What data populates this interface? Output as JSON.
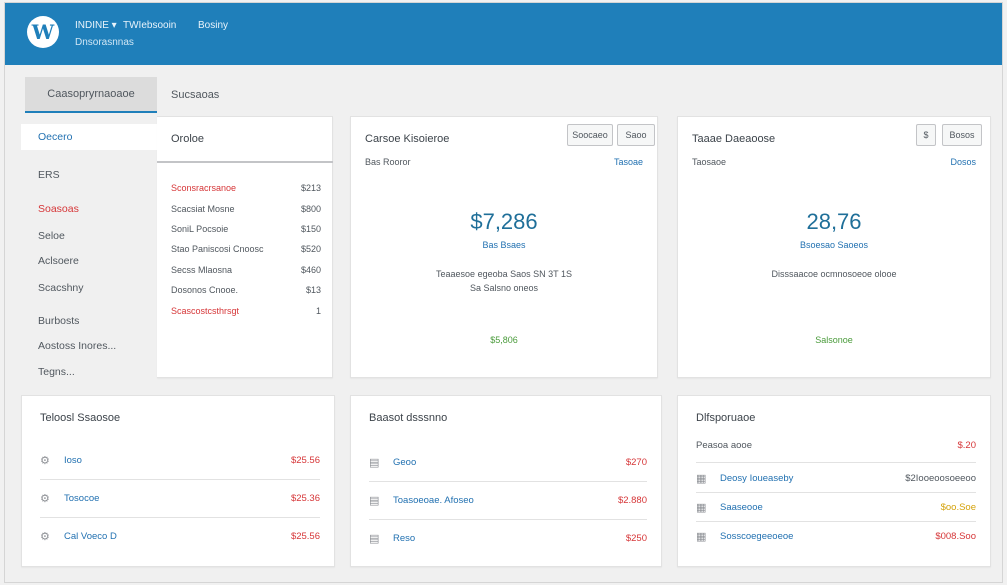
{
  "header": {
    "site_name": "INDINE ▾",
    "mid_link": "TWIebsooin",
    "right_link": "Bosiny",
    "subtitle": "Dnsorasnnas"
  },
  "tabs": [
    {
      "label": "Caasopryrnaoaoe",
      "active": true
    },
    {
      "label": "Sucsaoas",
      "active": false
    }
  ],
  "nav": [
    {
      "label": "Oecero",
      "active": true,
      "red": false
    },
    {
      "label": "ERS",
      "active": false,
      "red": false
    },
    {
      "label": "Soasoas",
      "active": false,
      "red": true
    },
    {
      "label": "Seloe",
      "active": false,
      "red": false
    },
    {
      "label": "Aclsoere",
      "active": false,
      "red": false
    },
    {
      "label": "Scacshny",
      "active": false,
      "red": false
    },
    {
      "label": "Burbosts",
      "active": false,
      "red": false
    },
    {
      "label": "Aostoss Inores...",
      "active": false,
      "red": false
    },
    {
      "label": "Tegns...",
      "active": false,
      "red": false
    }
  ],
  "orders": {
    "title": "Oroloe",
    "rows": [
      {
        "label": "Sconsracrsanoe",
        "value": "$213",
        "red": true
      },
      {
        "label": "Scacsiat Mosne",
        "value": "$800",
        "red": false
      },
      {
        "label": "SoniL Pocsoie",
        "value": "$150",
        "red": false
      },
      {
        "label": "Stao Paniscosi Cnoosc",
        "value": "$520",
        "red": false
      },
      {
        "label": "Secss Mlaosna",
        "value": "$460",
        "red": false
      },
      {
        "label": "Dosonos Cnooe.",
        "value": "$13",
        "red": false
      },
      {
        "label": "Scascostcsthrsgt",
        "value": "1",
        "red": true
      }
    ]
  },
  "summary1": {
    "title": "Carsoe Kisoieroe",
    "btn1": "Soocaeo",
    "btn2": "Saoo",
    "sub_left": "Bas Rooror",
    "sub_right": "Tasoae",
    "big": "$7,286",
    "big_sub": "Bas Bsaes",
    "desc_line1": "Teaaesoe egeoba Saos SN 3T 1S",
    "desc_line2": "Sa Salsno oneos",
    "green": "$5,806"
  },
  "summary2": {
    "title": "Taaae Daeaoose",
    "btn1": "$",
    "btn2": "Bosos",
    "sub_left": "Taosaoe",
    "sub_right": "Dosos",
    "big": "28,76",
    "big_sub": "Bsoesao Saoeos",
    "desc_line1": "Disssaacoe ocmnosoeoe olooe",
    "desc_line2": "",
    "green": "Salsonoe"
  },
  "bottom1": {
    "title": "Teloosl Ssaosoe",
    "rows": [
      {
        "label": "Ioso",
        "value": "$25.56"
      },
      {
        "label": "Tosocoe",
        "value": "$25.36"
      },
      {
        "label": "Cal Voeco D",
        "value": "$25.56"
      }
    ]
  },
  "bottom2": {
    "title": "Baasot dsssnno",
    "rows": [
      {
        "label": "Geoo",
        "value": "$270"
      },
      {
        "label": "Toasoeoae. Afoseo",
        "value": "$2.880"
      },
      {
        "label": "Reso",
        "value": "$250"
      }
    ]
  },
  "bottom3": {
    "title": "Dlfsporuaoe",
    "head_label": "Peasoa aooe",
    "head_value": "$.20",
    "rows": [
      {
        "label": "Deosy Ioueaseby",
        "value": "$2Iooeoosoeeoo",
        "style": "dark"
      },
      {
        "label": "Saaseooe",
        "value": "$oo.Soe",
        "style": "yellow"
      },
      {
        "label": "Sosscoegeeoeoe",
        "value": "$008.Soo",
        "style": "red"
      }
    ]
  }
}
